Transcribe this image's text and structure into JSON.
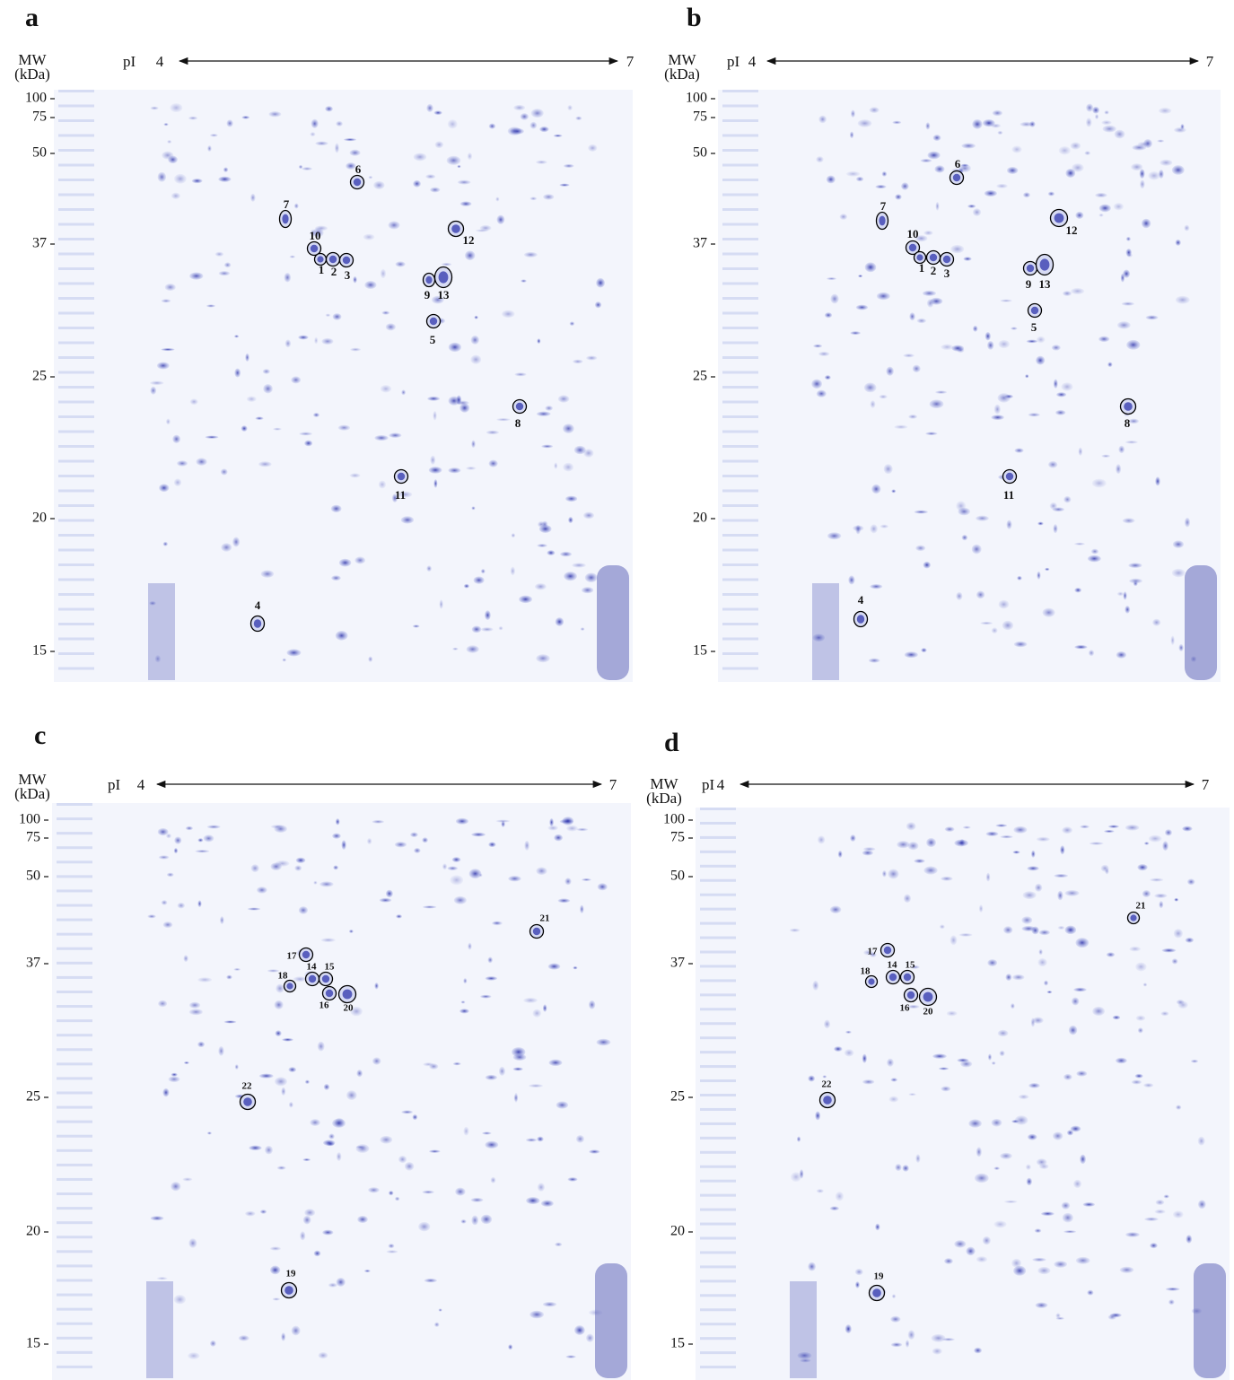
{
  "panels": [
    {
      "label": "a",
      "mw_label": "MW",
      "mw_unit": "(kDa)",
      "pi_label": "pI",
      "pi_min": 4,
      "pi_max": 7,
      "mw_ticks": [
        100,
        75,
        50,
        37,
        25,
        20,
        15
      ],
      "spots": [
        6,
        7,
        10,
        1,
        2,
        3,
        12,
        9,
        13,
        5,
        8,
        11,
        4
      ]
    },
    {
      "label": "b",
      "mw_label": "MW",
      "mw_unit": "(kDa)",
      "pi_label": "pI",
      "pi_min": 4,
      "pi_max": 7,
      "mw_ticks": [
        100,
        75,
        50,
        37,
        25,
        20,
        15
      ],
      "spots": [
        6,
        7,
        10,
        1,
        2,
        3,
        12,
        9,
        13,
        5,
        8,
        11,
        4
      ]
    },
    {
      "label": "c",
      "mw_label": "MW",
      "mw_unit": "(kDa)",
      "pi_label": "pI",
      "pi_min": 4,
      "pi_max": 7,
      "mw_ticks": [
        100,
        75,
        50,
        37,
        25,
        20,
        15
      ],
      "spots": [
        21,
        17,
        14,
        15,
        18,
        16,
        20,
        22,
        19
      ]
    },
    {
      "label": "d",
      "mw_label": "MW",
      "mw_unit": "(kDa)",
      "pi_label": "pI",
      "pi_min": 4,
      "pi_max": 7,
      "mw_ticks": [
        100,
        75,
        50,
        37,
        25,
        20,
        15
      ],
      "spots": [
        21,
        17,
        14,
        15,
        18,
        16,
        20,
        22,
        19
      ]
    }
  ]
}
